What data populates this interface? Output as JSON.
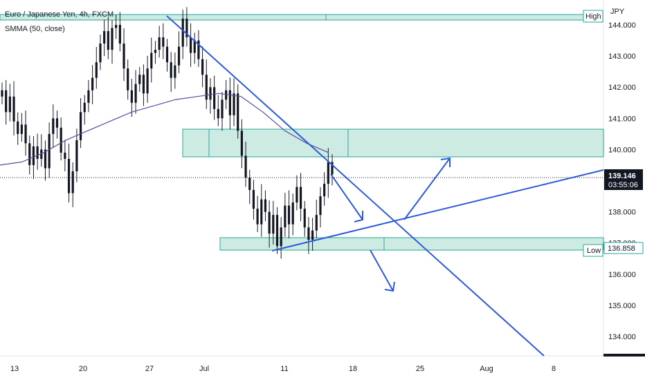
{
  "header": {
    "symbol_title": "Euro / Japanese Yen, 4h, FXCM",
    "indicator_label": "SMMA (50, close)"
  },
  "colors": {
    "bull": "#131722",
    "bear": "#131722",
    "smma": "#5b4a9e",
    "trend": "#2a5ada",
    "zone_fill": "#cdebe3",
    "zone_stroke": "#26a69a",
    "price_box": "#131722"
  },
  "chart_data": {
    "type": "candlestick",
    "currency": "JPY",
    "y_ticks": [
      "134.000",
      "135.000",
      "136.000",
      "137.000",
      "138.000",
      "139.000",
      "140.000",
      "141.000",
      "142.000",
      "143.000",
      "144.000"
    ],
    "ylim": [
      133.4,
      144.35
    ],
    "x_ticks": [
      "13",
      "20",
      "27",
      "Jul",
      "11",
      "18",
      "25",
      "Aug",
      "8"
    ],
    "current_price": {
      "value": 139.146,
      "label": "139.146",
      "countdown": "03:55:06"
    },
    "levels": [
      {
        "name": "High",
        "value": 144.22
      },
      {
        "name": "Low",
        "value": 136.858
      }
    ],
    "level_labels": {
      "high": "High",
      "low": "Low",
      "low_value": "136.858"
    },
    "zones": [
      {
        "name": "resistance-zone",
        "y_top": 140.62,
        "y_bottom": 139.75
      },
      {
        "name": "support-zone",
        "y_top": 137.25,
        "y_bottom": 136.85
      }
    ],
    "close_series": [
      141.9,
      141.2,
      141.7,
      140.9,
      140.5,
      140.8,
      140.2,
      139.5,
      140.1,
      139.7,
      140.0,
      139.4,
      140.5,
      141.0,
      140.7,
      139.9,
      139.7,
      138.6,
      139.3,
      140.3,
      141.2,
      141.5,
      141.9,
      142.3,
      142.8,
      143.4,
      143.8,
      143.2,
      143.9,
      144.0,
      143.4,
      142.6,
      141.9,
      141.5,
      142.1,
      142.4,
      141.8,
      142.6,
      143.1,
      143.2,
      143.6,
      143.3,
      142.8,
      142.3,
      142.7,
      143.3,
      144.2,
      143.6,
      143.1,
      143.5,
      142.9,
      142.4,
      141.6,
      142.0,
      141.3,
      141.0,
      141.6,
      141.9,
      141.1,
      141.8,
      140.6,
      139.8,
      139.1,
      138.7,
      138.1,
      137.6,
      138.4,
      138.0,
      137.3,
      137.9,
      136.9,
      137.5,
      138.2,
      137.6,
      138.3,
      138.8,
      138.1,
      137.5,
      137.1,
      137.4,
      137.9,
      138.5,
      138.9,
      139.6,
      139.2
    ],
    "smma_series": [
      139.5,
      139.6,
      139.9,
      140.3,
      140.6,
      140.9,
      141.2,
      141.4,
      141.6,
      141.7,
      141.8,
      141.7,
      141.2,
      140.6,
      140.2,
      139.9
    ]
  }
}
